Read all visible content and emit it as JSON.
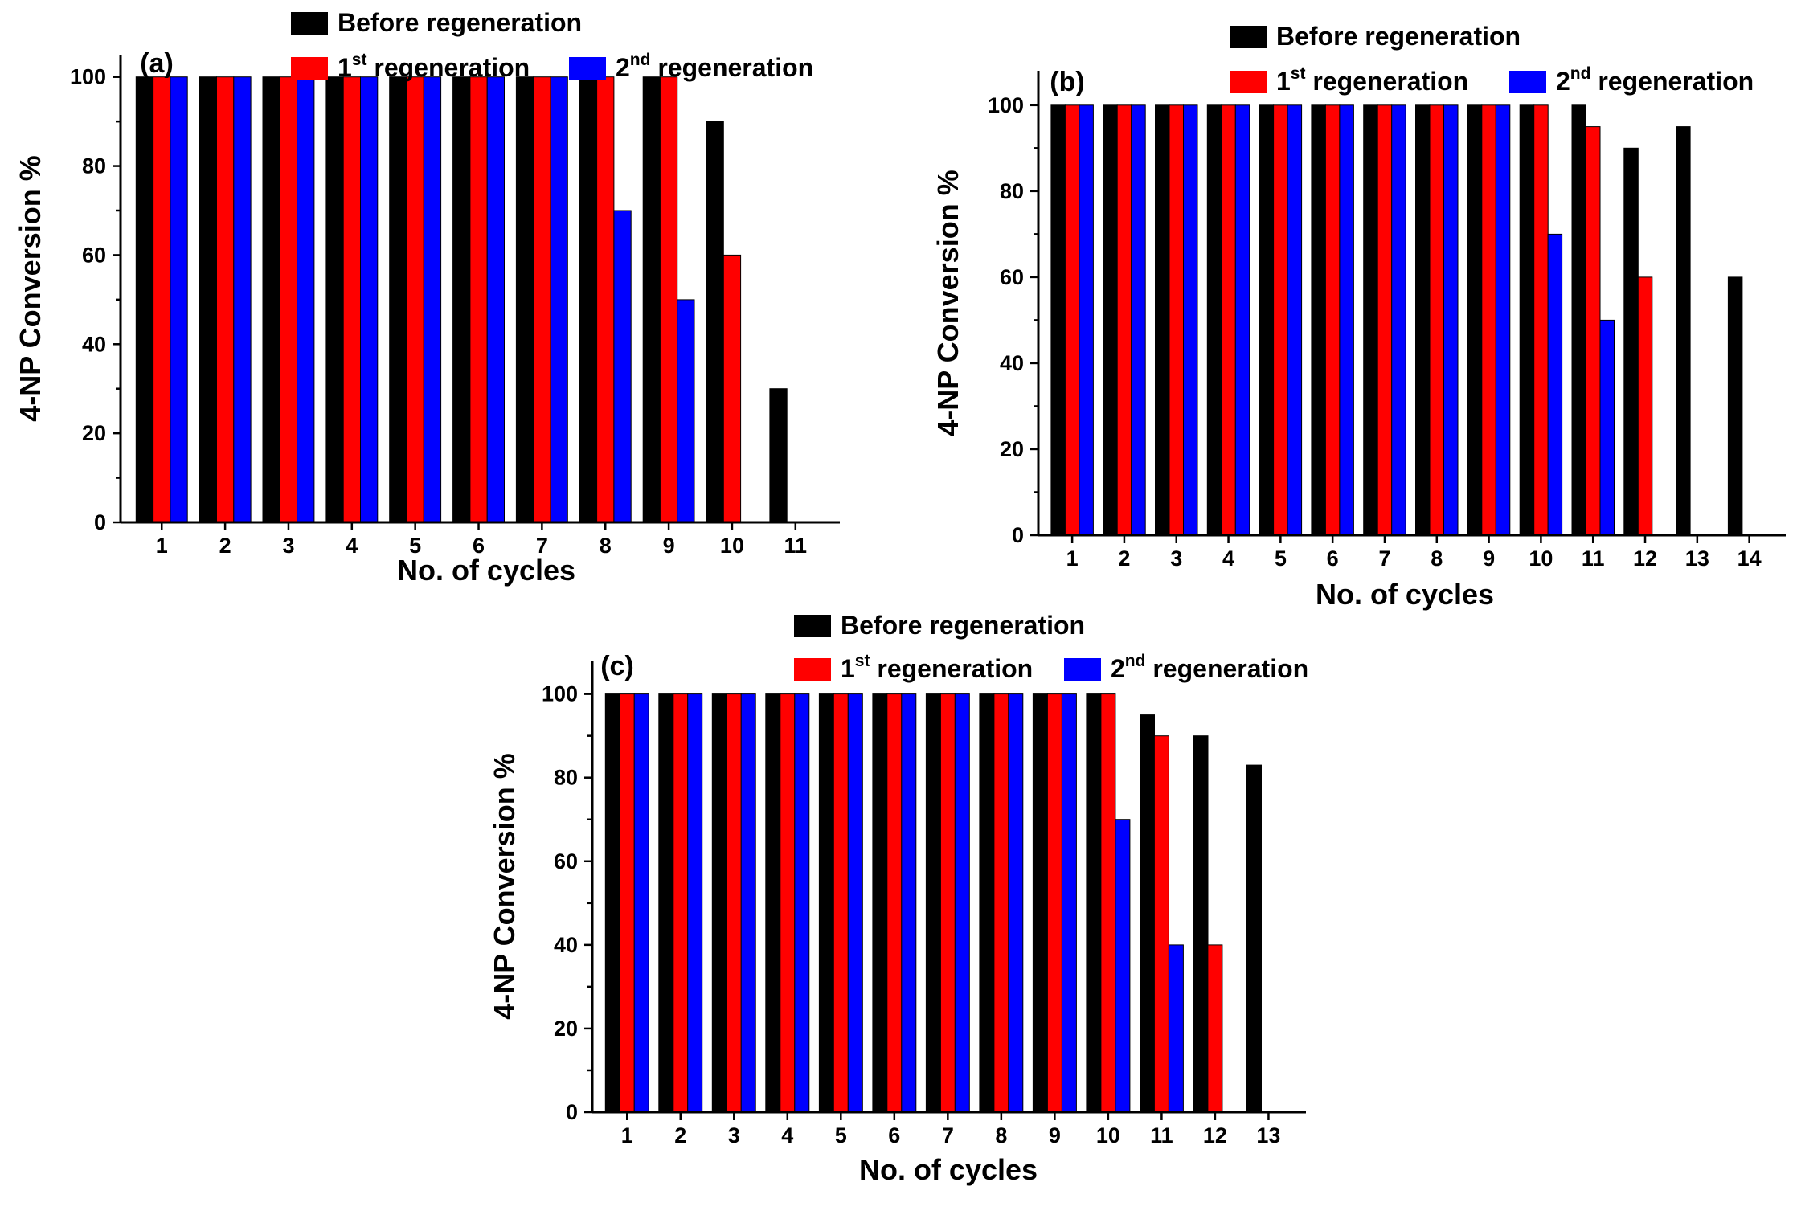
{
  "colors": {
    "before": "#000000",
    "first": "#ff0000",
    "second": "#0000ff"
  },
  "chart_data": [
    {
      "type": "bar",
      "panel_label": "(a)",
      "xlabel": "No. of cycles",
      "ylabel": "4-NP Conversion %",
      "ylim": [
        0,
        105
      ],
      "yticks": [
        0,
        20,
        40,
        60,
        80,
        100
      ],
      "categories": [
        "1",
        "2",
        "3",
        "4",
        "5",
        "6",
        "7",
        "8",
        "9",
        "10",
        "11"
      ],
      "legend": {
        "before": {
          "text": "Before regeneration"
        },
        "first": {
          "num": "1",
          "sup": "st",
          "word": " regeneration"
        },
        "second": {
          "num": "2",
          "sup": "nd",
          "word": " regeneration"
        }
      },
      "series": [
        {
          "key": "before",
          "values": [
            100,
            100,
            100,
            100,
            100,
            100,
            100,
            100,
            100,
            90,
            30
          ]
        },
        {
          "key": "first",
          "values": [
            100,
            100,
            100,
            100,
            100,
            100,
            100,
            100,
            100,
            60,
            null
          ]
        },
        {
          "key": "second",
          "values": [
            100,
            100,
            100,
            100,
            100,
            100,
            100,
            70,
            50,
            null,
            null
          ]
        }
      ]
    },
    {
      "type": "bar",
      "panel_label": "(b)",
      "xlabel": "No. of cycles",
      "ylabel": "4-NP Conversion %",
      "ylim": [
        0,
        108
      ],
      "yticks": [
        0,
        20,
        40,
        60,
        80,
        100
      ],
      "categories": [
        "1",
        "2",
        "3",
        "4",
        "5",
        "6",
        "7",
        "8",
        "9",
        "10",
        "11",
        "12",
        "13",
        "14"
      ],
      "legend": {
        "before": {
          "text": "Before regeneration"
        },
        "first": {
          "num": "1",
          "sup": "st",
          "word": " regeneration"
        },
        "second": {
          "num": "2",
          "sup": "nd",
          "word": " regeneration"
        }
      },
      "series": [
        {
          "key": "before",
          "values": [
            100,
            100,
            100,
            100,
            100,
            100,
            100,
            100,
            100,
            100,
            100,
            90,
            95,
            60
          ]
        },
        {
          "key": "first",
          "values": [
            100,
            100,
            100,
            100,
            100,
            100,
            100,
            100,
            100,
            100,
            95,
            60,
            null,
            null
          ]
        },
        {
          "key": "second",
          "values": [
            100,
            100,
            100,
            100,
            100,
            100,
            100,
            100,
            100,
            70,
            50,
            null,
            null,
            null
          ]
        }
      ]
    },
    {
      "type": "bar",
      "panel_label": "(c)",
      "xlabel": "No. of cycles",
      "ylabel": "4-NP Conversion %",
      "ylim": [
        0,
        108
      ],
      "yticks": [
        0,
        20,
        40,
        60,
        80,
        100
      ],
      "categories": [
        "1",
        "2",
        "3",
        "4",
        "5",
        "6",
        "7",
        "8",
        "9",
        "10",
        "11",
        "12",
        "13"
      ],
      "legend": {
        "before": {
          "text": "Before regeneration"
        },
        "first": {
          "num": "1",
          "sup": "st",
          "word": " regeneration"
        },
        "second": {
          "num": "2",
          "sup": "nd",
          "word": " regeneration"
        }
      },
      "series": [
        {
          "key": "before",
          "values": [
            100,
            100,
            100,
            100,
            100,
            100,
            100,
            100,
            100,
            100,
            95,
            90,
            83
          ]
        },
        {
          "key": "first",
          "values": [
            100,
            100,
            100,
            100,
            100,
            100,
            100,
            100,
            100,
            100,
            90,
            40,
            null
          ]
        },
        {
          "key": "second",
          "values": [
            100,
            100,
            100,
            100,
            100,
            100,
            100,
            100,
            100,
            70,
            40,
            null,
            null
          ]
        }
      ]
    }
  ]
}
